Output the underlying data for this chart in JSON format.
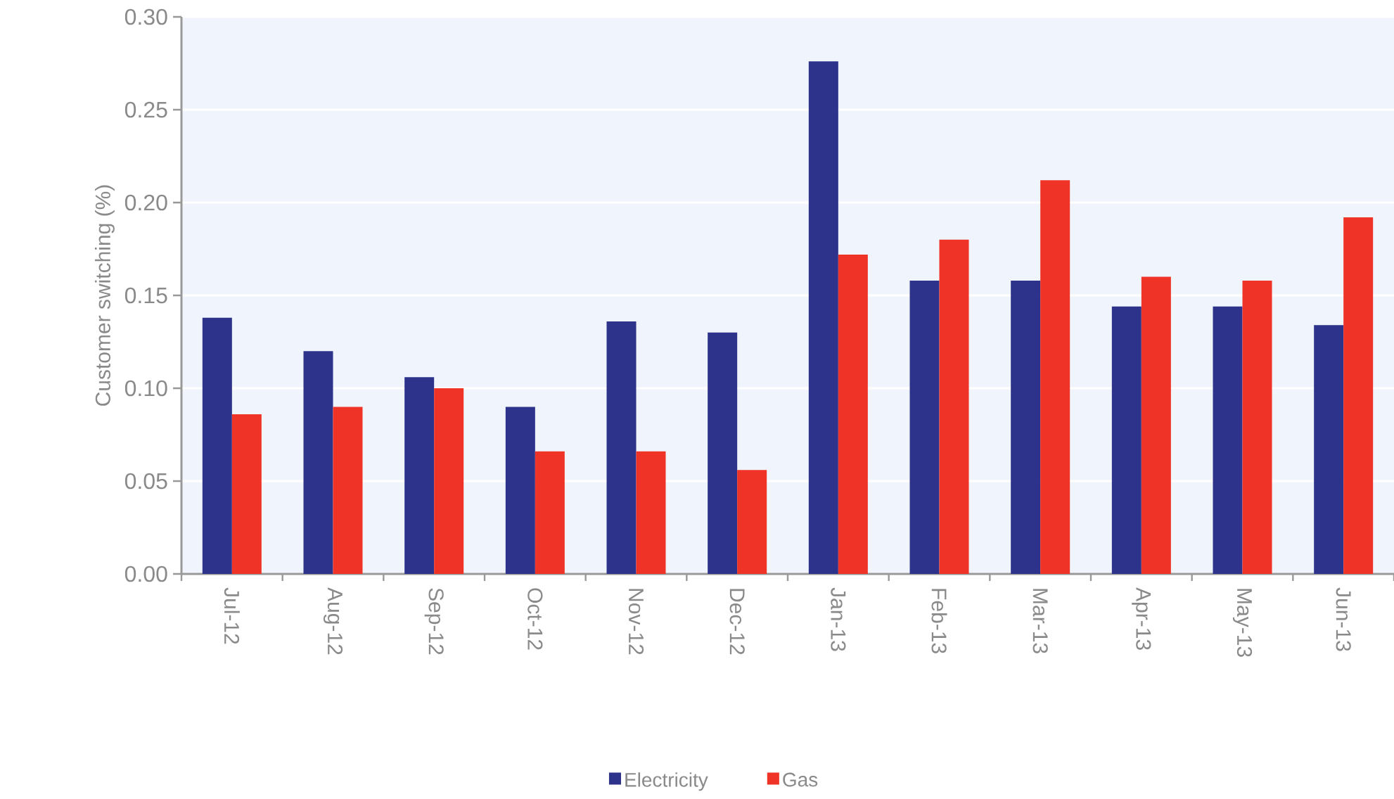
{
  "chart_data": {
    "type": "bar",
    "ylabel": "Customer switching (%)",
    "categories": [
      "Jul-12",
      "Aug-12",
      "Sep-12",
      "Oct-12",
      "Nov-12",
      "Dec-12",
      "Jan-13",
      "Feb-13",
      "Mar-13",
      "Apr-13",
      "May-13",
      "Jun-13"
    ],
    "series": [
      {
        "name": "Electricity",
        "color": "#2d338b",
        "values": [
          0.138,
          0.12,
          0.106,
          0.09,
          0.136,
          0.13,
          0.276,
          0.158,
          0.158,
          0.144,
          0.144,
          0.134
        ]
      },
      {
        "name": "Gas",
        "color": "#ef3326",
        "values": [
          0.086,
          0.09,
          0.1,
          0.066,
          0.066,
          0.056,
          0.172,
          0.18,
          0.212,
          0.16,
          0.158,
          0.192
        ]
      }
    ],
    "ylim": [
      0,
      0.3
    ],
    "yticks": [
      {
        "value": 0,
        "label": "0.00"
      },
      {
        "value": 0.05,
        "label": "0.05"
      },
      {
        "value": 0.1,
        "label": "0.10"
      },
      {
        "value": 0.15,
        "label": "0.15"
      },
      {
        "value": 0.2,
        "label": "0.20"
      },
      {
        "value": 0.25,
        "label": "0.25"
      },
      {
        "value": 0.3,
        "label": "0.30"
      }
    ],
    "grid": "y",
    "legend": "bottom"
  }
}
